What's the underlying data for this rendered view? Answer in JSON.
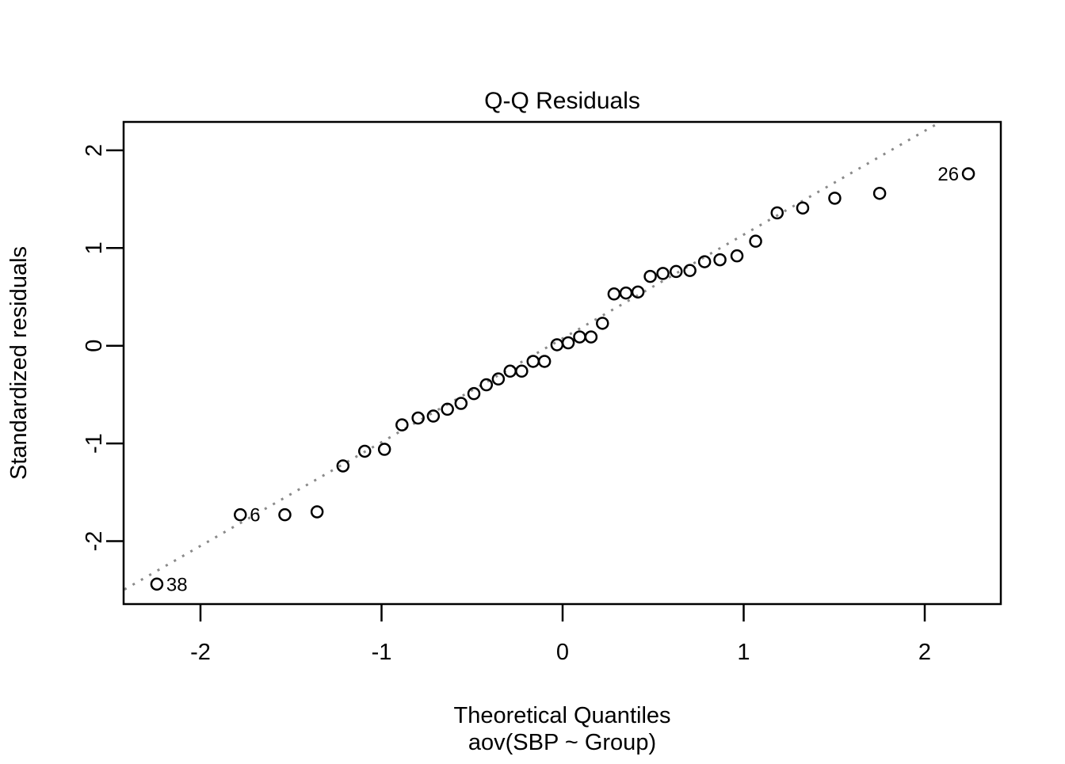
{
  "chart_data": {
    "type": "scatter",
    "subtype": "qq-plot",
    "title": "Q-Q Residuals",
    "xlabel": "Theoretical Quantiles",
    "sublabel": "aov(SBP ~ Group)",
    "ylabel": "Standardized residuals",
    "xlim": [
      -2.42,
      2.42
    ],
    "ylim": [
      -2.65,
      2.29
    ],
    "xticks": [
      -2,
      -1,
      0,
      1,
      2
    ],
    "yticks": [
      -2,
      -1,
      0,
      1,
      2
    ],
    "grid": false,
    "points": {
      "theoretical_quantiles": [
        -2.241,
        -1.78,
        -1.534,
        -1.356,
        -1.213,
        -1.093,
        -0.984,
        -0.887,
        -0.798,
        -0.714,
        -0.636,
        -0.561,
        -0.49,
        -0.421,
        -0.355,
        -0.29,
        -0.226,
        -0.163,
        -0.1,
        -0.031,
        0.031,
        0.094,
        0.157,
        0.22,
        0.284,
        0.35,
        0.416,
        0.484,
        0.554,
        0.627,
        0.703,
        0.784,
        0.869,
        0.963,
        1.066,
        1.185,
        1.326,
        1.503,
        1.751,
        2.241
      ],
      "standardized_residuals": [
        -2.44,
        -1.73,
        -1.73,
        -1.7,
        -1.23,
        -1.08,
        -1.06,
        -0.81,
        -0.74,
        -0.72,
        -0.65,
        -0.59,
        -0.49,
        -0.4,
        -0.34,
        -0.26,
        -0.26,
        -0.16,
        -0.16,
        0.01,
        0.03,
        0.09,
        0.09,
        0.23,
        0.53,
        0.54,
        0.55,
        0.71,
        0.74,
        0.76,
        0.77,
        0.86,
        0.88,
        0.92,
        1.07,
        1.36,
        1.41,
        1.51,
        1.56,
        1.76
      ]
    },
    "labeled_points": [
      {
        "label": "38",
        "point_index": 0,
        "side": "right"
      },
      {
        "label": "6",
        "point_index": 1,
        "side": "right"
      },
      {
        "label": "26",
        "point_index": 39,
        "side": "left"
      }
    ],
    "reference_line": {
      "intercept": 0.075,
      "slope": 1.062,
      "style": "dotted",
      "color": "#8a8a8a"
    },
    "colors": {
      "points": "#000000",
      "axes": "#000000",
      "background": "#ffffff"
    }
  }
}
